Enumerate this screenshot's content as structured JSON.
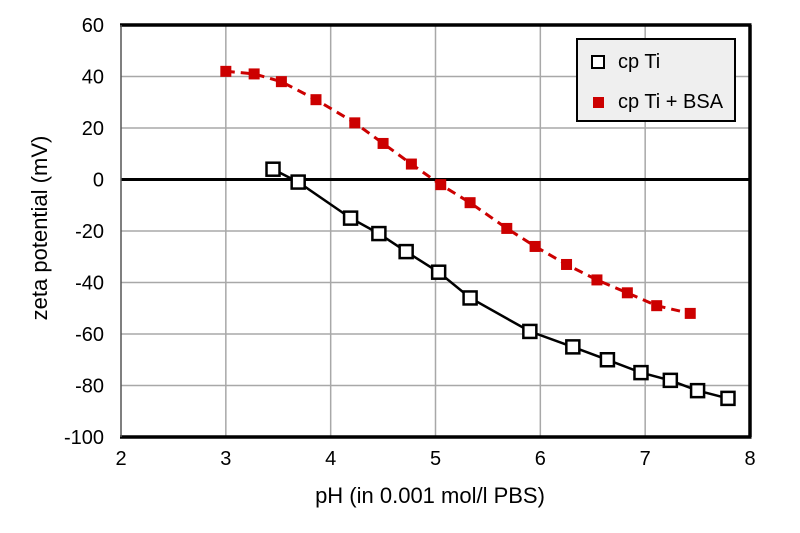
{
  "chart_data": {
    "type": "line",
    "title": "",
    "xlabel": "pH (in 0.001 mol/l PBS)",
    "ylabel": "zeta potential (mV)",
    "xlim": [
      2,
      8
    ],
    "ylim": [
      -100,
      60
    ],
    "xticks": [
      2,
      3,
      4,
      5,
      6,
      7,
      8
    ],
    "yticks": [
      60,
      40,
      20,
      0,
      -20,
      -40,
      -60,
      -80,
      -100
    ],
    "grid": true,
    "zero_line": 0,
    "legend_position": "top-right",
    "series": [
      {
        "name": "cp Ti",
        "color": "#000000",
        "line_style": "solid",
        "marker": "open-square",
        "points": [
          [
            3.45,
            4
          ],
          [
            3.69,
            -1
          ],
          [
            4.19,
            -15
          ],
          [
            4.46,
            -21
          ],
          [
            4.72,
            -28
          ],
          [
            5.03,
            -36
          ],
          [
            5.33,
            -46
          ],
          [
            5.9,
            -59
          ],
          [
            6.31,
            -65
          ],
          [
            6.64,
            -70
          ],
          [
            6.96,
            -75
          ],
          [
            7.24,
            -78
          ],
          [
            7.5,
            -82
          ],
          [
            7.79,
            -85
          ]
        ]
      },
      {
        "name": "cp Ti + BSA",
        "color": "#cc0000",
        "line_style": "dashed",
        "marker": "filled-square",
        "points": [
          [
            3.0,
            42
          ],
          [
            3.27,
            41
          ],
          [
            3.53,
            38
          ],
          [
            3.86,
            31
          ],
          [
            4.23,
            22
          ],
          [
            4.5,
            14
          ],
          [
            4.77,
            6
          ],
          [
            5.05,
            -2
          ],
          [
            5.33,
            -9
          ],
          [
            5.68,
            -19
          ],
          [
            5.95,
            -26
          ],
          [
            6.25,
            -33
          ],
          [
            6.54,
            -39
          ],
          [
            6.83,
            -44
          ],
          [
            7.11,
            -49
          ],
          [
            7.43,
            -52
          ]
        ]
      }
    ],
    "colors": {
      "grid": "#a8a8a8",
      "axis_frame": "#000000",
      "left_spine": "#555555",
      "legend_bg": "#efefef",
      "background": "#ffffff"
    }
  }
}
